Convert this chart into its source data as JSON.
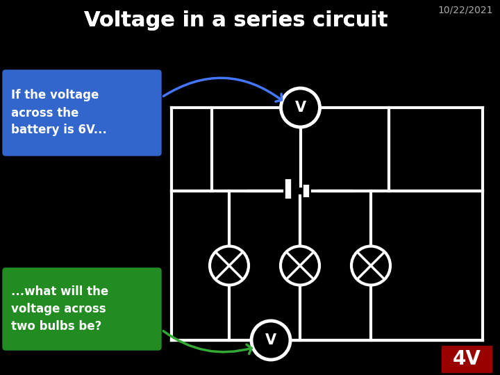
{
  "title": "Voltage in a series circuit",
  "date": "10/22/2021",
  "background_color": "#000000",
  "title_color": "#ffffff",
  "title_fontsize": 22,
  "date_fontsize": 10,
  "circuit_color": "#ffffff",
  "blue_box_text": "If the voltage\nacross the\nbattery is 6V...",
  "green_box_text": "...what will the\nvoltage across\ntwo bulbs be?",
  "blue_box_color": "#3366cc",
  "green_box_color": "#228B22",
  "answer_text": "4V",
  "answer_bg": "#990000",
  "answer_color": "#ffffff",
  "top_voltmeter_label": "V",
  "bottom_voltmeter_label": "V",
  "lw": 3,
  "vm_r": 28,
  "bulb_r": 28,
  "arrow_blue": "#4477ff",
  "arrow_green": "#33aa33"
}
